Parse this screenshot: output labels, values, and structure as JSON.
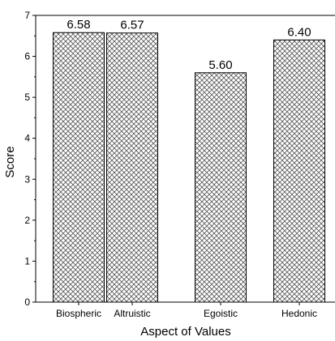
{
  "chart_data": {
    "type": "bar",
    "categories": [
      "Biospheric",
      "Altruistic",
      "Egoistic",
      "Hedonic"
    ],
    "values": [
      6.58,
      6.57,
      5.6,
      6.4
    ],
    "value_labels": [
      "6.58",
      "6.57",
      "5.60",
      "6.40"
    ],
    "title": "",
    "xlabel": "Aspect of Values",
    "ylabel": "Score",
    "ylim": [
      0,
      7
    ],
    "yticks": [
      0,
      1,
      2,
      3,
      4,
      5,
      6,
      7
    ],
    "grid": false,
    "bar_fill": "crosshatch",
    "colors": {
      "bar_stroke": "#000000",
      "hatch": "#444444",
      "axis": "#000000"
    }
  }
}
